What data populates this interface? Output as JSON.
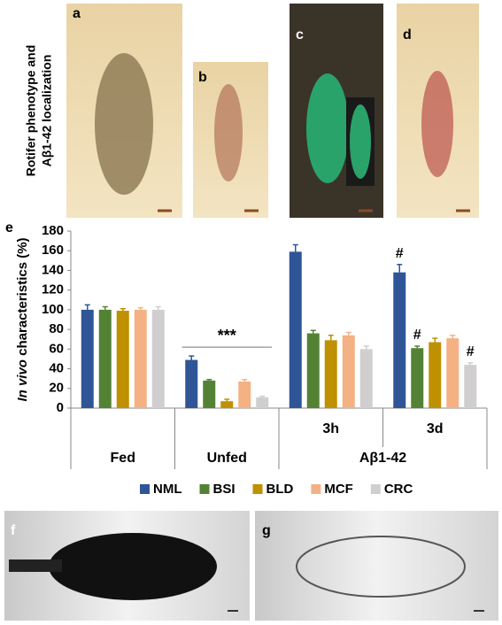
{
  "figure": {
    "side_label": [
      "Rotifer phenotype and",
      "Aβ1-42 localization"
    ],
    "panel_labels": [
      "a",
      "b",
      "c",
      "d",
      "e",
      "f",
      "g"
    ]
  },
  "chart_data": {
    "type": "bar",
    "ylabel": [
      "In vivo",
      "characteristics (%)"
    ],
    "categories": [
      "Fed",
      "Unfed",
      "3h",
      "3d"
    ],
    "groups": [
      {
        "name": "Aβ1-42",
        "members": [
          2,
          3
        ]
      }
    ],
    "series": [
      {
        "name": "NML",
        "color": "#2f5597",
        "values": [
          100,
          49,
          159,
          138
        ],
        "errors": [
          5,
          4,
          7,
          8
        ]
      },
      {
        "name": "BSI",
        "color": "#548235",
        "values": [
          100,
          28,
          76,
          61
        ],
        "errors": [
          3,
          1,
          3,
          2
        ]
      },
      {
        "name": "BLD",
        "color": "#bf9000",
        "values": [
          99,
          7,
          69,
          67
        ],
        "errors": [
          2,
          2,
          5,
          4
        ]
      },
      {
        "name": "MCF",
        "color": "#f4b183",
        "values": [
          100,
          27,
          74,
          71
        ],
        "errors": [
          2,
          2,
          3,
          3
        ]
      },
      {
        "name": "CRC",
        "color": "#d0cece",
        "values": [
          100,
          11,
          60,
          44
        ],
        "errors": [
          3,
          1,
          3,
          2
        ]
      }
    ],
    "ylim": [
      0,
      180
    ],
    "yticks": [
      0,
      20,
      40,
      60,
      80,
      100,
      120,
      140,
      160,
      180
    ],
    "annotations": [
      {
        "text": "***",
        "category": 1,
        "y": 62
      },
      {
        "text": "#",
        "category": 3,
        "series": 0
      },
      {
        "text": "#",
        "category": 3,
        "series": 1
      },
      {
        "text": "#",
        "category": 3,
        "series": 4
      }
    ],
    "legend": "bottom"
  }
}
